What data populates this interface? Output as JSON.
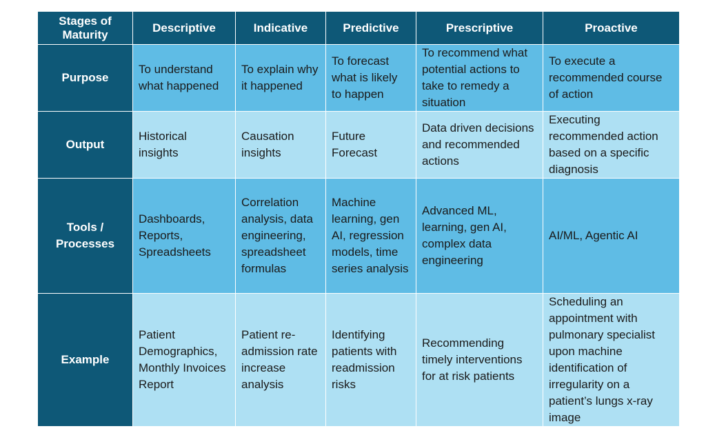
{
  "header": {
    "corner": "Stages of Maturity",
    "stages": [
      "Descriptive",
      "Indicative",
      "Predictive",
      "Prescriptive",
      "Proactive"
    ]
  },
  "rows": [
    {
      "label": "Purpose",
      "cells": [
        "To understand what happened",
        "To explain why it happened",
        "To forecast what is likely to happen",
        "To recommend what potential actions to take to remedy a situation",
        "To execute a recommended course of action"
      ]
    },
    {
      "label": "Output",
      "cells": [
        "Historical insights",
        "Causation insights",
        "Future Forecast",
        "Data driven decisions and recommended actions",
        "Executing recommended action based on a specific diagnosis"
      ]
    },
    {
      "label": "Tools / Processes",
      "cells": [
        "Dashboards, Reports, Spreadsheets",
        "Correlation analysis, data engineering, spreadsheet formulas",
        "Machine learning, gen AI, regression models, time series analysis",
        "Advanced ML, learning, gen AI, complex data engineering",
        "AI/ML, Agentic AI"
      ]
    },
    {
      "label": "Example",
      "cells": [
        "Patient Demographics, Monthly Invoices Report",
        "Patient re-admission rate increase analysis",
        "Identifying patients with readmission risks",
        "Recommending timely interventions for at risk patients",
        "Scheduling an appointment with pulmonary specialist upon machine identification of irregularity on a patient’s lungs x-ray image"
      ]
    }
  ],
  "colors": {
    "header_bg": "#0e5877",
    "row_dark": "#5fbce5",
    "row_light": "#aee0f3",
    "border": "#ffffff"
  }
}
